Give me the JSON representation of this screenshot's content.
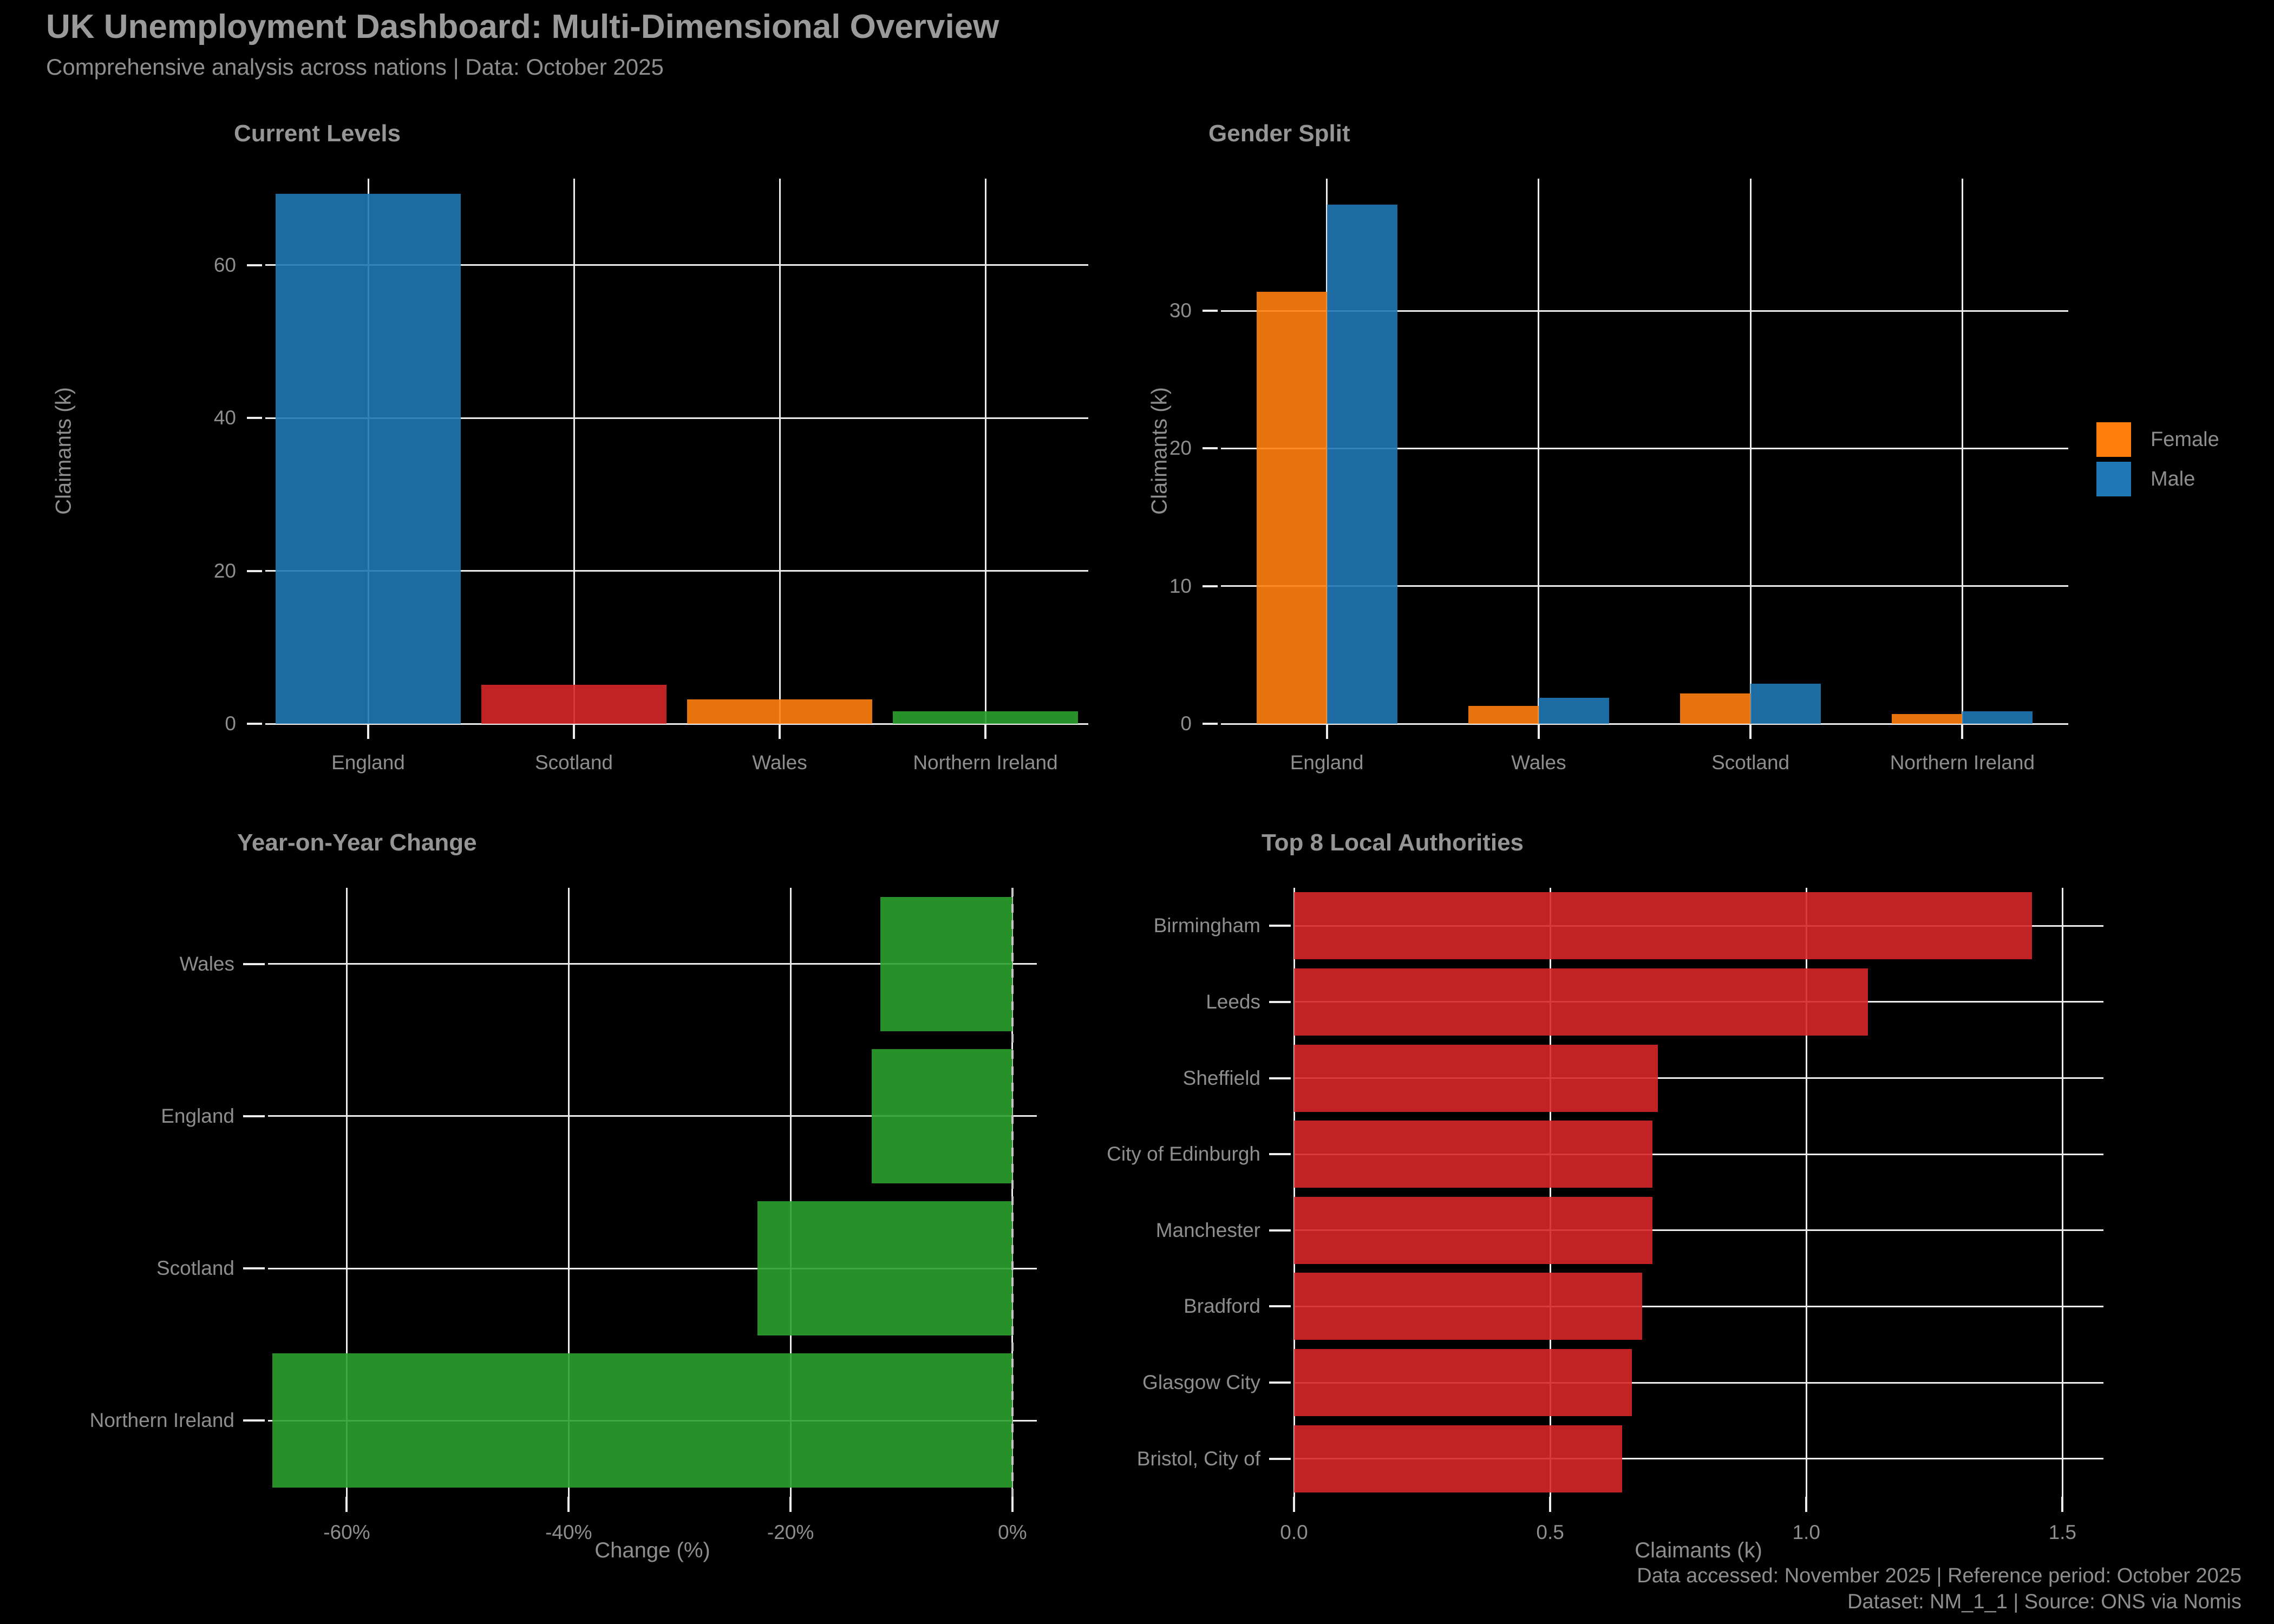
{
  "header": {
    "title": "UK Unemployment Dashboard: Multi-Dimensional Overview",
    "subtitle": "Comprehensive analysis across nations | Data: October 2025"
  },
  "footer": {
    "line1": "Data accessed: November 2025 | Reference period: October 2025",
    "line2": "Dataset: NM_1_1 | Source: ONS via Nomis"
  },
  "colors": {
    "background": "#000000",
    "text": "#8e8e8e",
    "grid": "#ededed",
    "blue": "#1f77b4",
    "orange": "#ff7f0e",
    "red": "#d62728",
    "green": "#2ca02c"
  },
  "chart_data": [
    {
      "id": "current-levels",
      "type": "bar",
      "title": "Current Levels",
      "ylabel": "Claimants (k)",
      "categories": [
        "England",
        "Scotland",
        "Wales",
        "Northern Ireland"
      ],
      "values": [
        69.3,
        5.1,
        3.2,
        1.6
      ],
      "bar_colors": [
        "#1f77b4",
        "#d62728",
        "#ff7f0e",
        "#2ca02c"
      ],
      "yticks": [
        0,
        20,
        40,
        60
      ],
      "ylim": [
        0,
        71.3
      ],
      "grid": true
    },
    {
      "id": "gender-split",
      "type": "grouped_bar",
      "title": "Gender Split",
      "ylabel": "Claimants (k)",
      "categories": [
        "England",
        "Wales",
        "Scotland",
        "Northern Ireland"
      ],
      "series": [
        {
          "name": "Female",
          "color": "#ff7f0e",
          "values": [
            31.4,
            1.3,
            2.2,
            0.7
          ]
        },
        {
          "name": "Male",
          "color": "#1f77b4",
          "values": [
            37.7,
            1.9,
            2.9,
            0.9
          ]
        }
      ],
      "yticks": [
        0,
        10,
        20,
        30
      ],
      "ylim": [
        0,
        39.6
      ],
      "legend_position": "right",
      "grid": true
    },
    {
      "id": "yoy-change",
      "type": "barh",
      "title": "Year-on-Year Change",
      "xlabel": "Change (%)",
      "categories": [
        "Wales",
        "England",
        "Scotland",
        "Northern Ireland"
      ],
      "values": [
        -11.9,
        -12.7,
        -23.0,
        -66.7
      ],
      "bar_color": "#2ca02c",
      "xtick_labels": [
        "-60%",
        "-40%",
        "-20%",
        "0%"
      ],
      "xtick_values": [
        -60,
        -40,
        -20,
        0
      ],
      "xlim": [
        -67.1,
        2.2
      ],
      "zero_line": "dashed",
      "grid": true
    },
    {
      "id": "top-authorities",
      "type": "barh",
      "title": "Top 8 Local Authorities",
      "xlabel": "Claimants (k)",
      "categories": [
        "Birmingham",
        "Leeds",
        "Sheffield",
        "City of Edinburgh",
        "Manchester",
        "Bradford",
        "Glasgow City",
        "Bristol, City of"
      ],
      "values": [
        1.44,
        1.12,
        0.71,
        0.7,
        0.7,
        0.68,
        0.66,
        0.64
      ],
      "bar_color": "#d62728",
      "xtick_labels": [
        "0.0",
        "0.5",
        "1.0",
        "1.5"
      ],
      "xtick_values": [
        0,
        0.5,
        1.0,
        1.5
      ],
      "xlim": [
        0,
        1.58
      ],
      "grid": true
    }
  ]
}
